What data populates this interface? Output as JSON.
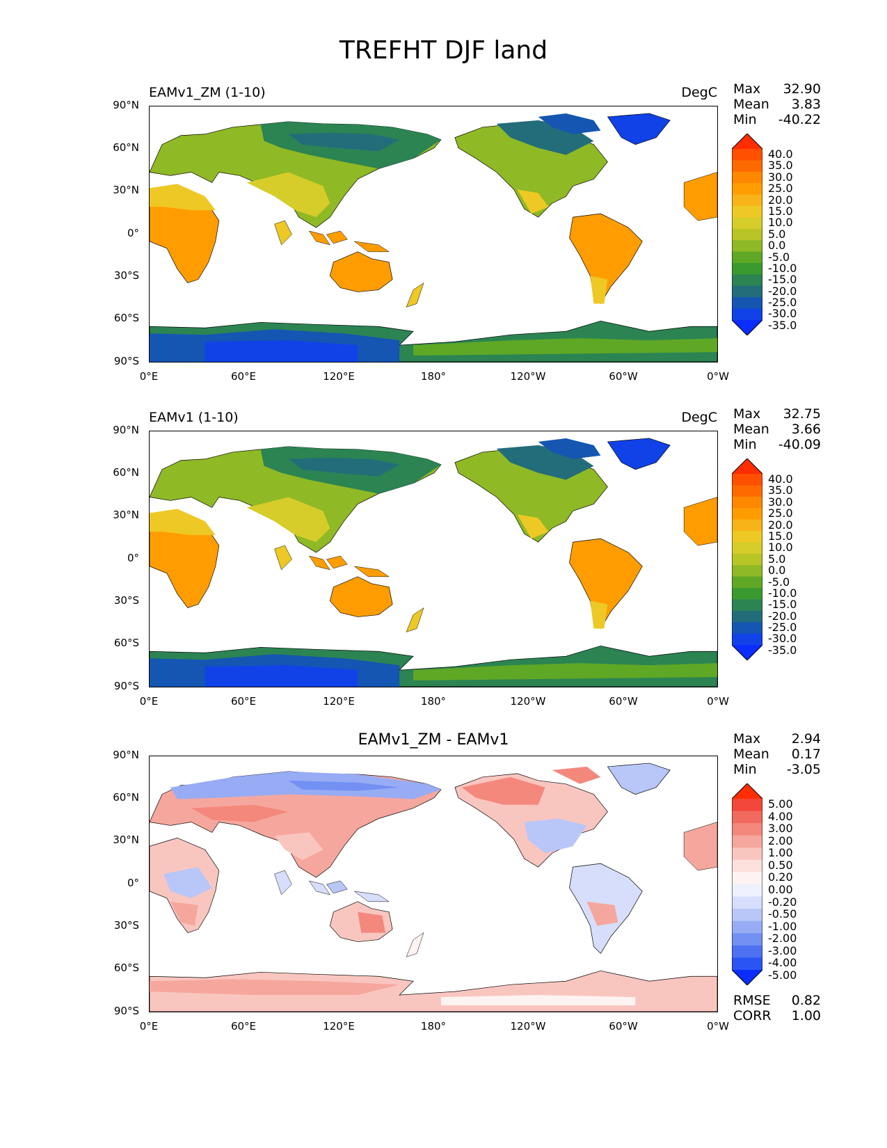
{
  "figure": {
    "title": "TREFHT DJF land"
  },
  "axes": {
    "lat_labels": [
      "90°N",
      "60°N",
      "30°N",
      "0°",
      "30°S",
      "60°S",
      "90°S"
    ],
    "lon_labels": [
      "0°E",
      "60°E",
      "120°E",
      "180°",
      "120°W",
      "60°W",
      "0°W"
    ]
  },
  "panels": [
    {
      "title_left": "EAMv1_ZM (1-10)",
      "title_right": "DegC",
      "title_center": "",
      "stats": {
        "max_label": "Max",
        "max": "32.90",
        "mean_label": "Mean",
        "mean": "3.83",
        "min_label": "Min",
        "min": "-40.22"
      },
      "colorbar_labels": [
        "40.0",
        "35.0",
        "30.0",
        "25.0",
        "20.0",
        "15.0",
        "10.0",
        "5.0",
        "0.0",
        "-5.0",
        "-10.0",
        "-15.0",
        "-20.0",
        "-25.0",
        "-30.0",
        "-35.0"
      ],
      "colorbar_colors": [
        "#ff2d00",
        "#ff4f00",
        "#ff6a00",
        "#ff8800",
        "#ff9d00",
        "#f7b318",
        "#eec824",
        "#d6cc2a",
        "#b9c426",
        "#8fb925",
        "#5fa825",
        "#3a9a2f",
        "#2b8452",
        "#236d7a",
        "#1556b2",
        "#1042e8",
        "#0b2dff"
      ]
    },
    {
      "title_left": "EAMv1 (1-10)",
      "title_right": "DegC",
      "title_center": "",
      "stats": {
        "max_label": "Max",
        "max": "32.75",
        "mean_label": "Mean",
        "mean": "3.66",
        "min_label": "Min",
        "min": "-40.09"
      },
      "colorbar_labels": [
        "40.0",
        "35.0",
        "30.0",
        "25.0",
        "20.0",
        "15.0",
        "10.0",
        "5.0",
        "0.0",
        "-5.0",
        "-10.0",
        "-15.0",
        "-20.0",
        "-25.0",
        "-30.0",
        "-35.0"
      ],
      "colorbar_colors": [
        "#ff2d00",
        "#ff4f00",
        "#ff6a00",
        "#ff8800",
        "#ff9d00",
        "#f7b318",
        "#eec824",
        "#d6cc2a",
        "#b9c426",
        "#8fb925",
        "#5fa825",
        "#3a9a2f",
        "#2b8452",
        "#236d7a",
        "#1556b2",
        "#1042e8",
        "#0b2dff"
      ]
    },
    {
      "title_left": "",
      "title_right": "",
      "title_center": "EAMv1_ZM - EAMv1",
      "stats": {
        "max_label": "Max",
        "max": "2.94",
        "mean_label": "Mean",
        "mean": "0.17",
        "min_label": "Min",
        "min": "-3.05"
      },
      "colorbar_labels": [
        "5.00",
        "4.00",
        "3.00",
        "2.00",
        "1.00",
        "0.50",
        "0.20",
        "0.00",
        "-0.20",
        "-0.50",
        "-1.00",
        "-2.00",
        "-3.00",
        "-4.00",
        "-5.00"
      ],
      "colorbar_colors": [
        "#ff2d00",
        "#f2473a",
        "#f26a5e",
        "#f4887d",
        "#f6a79d",
        "#f9c6bf",
        "#fce0dc",
        "#fdf3f2",
        "#eef1fd",
        "#d6defb",
        "#b8c7f8",
        "#97acf5",
        "#7390f3",
        "#4d71f2",
        "#2a55f4",
        "#0b2dff"
      ],
      "footer": {
        "rmse_label": "RMSE",
        "rmse": "0.82",
        "corr_label": "CORR",
        "corr": "1.00"
      }
    }
  ]
}
